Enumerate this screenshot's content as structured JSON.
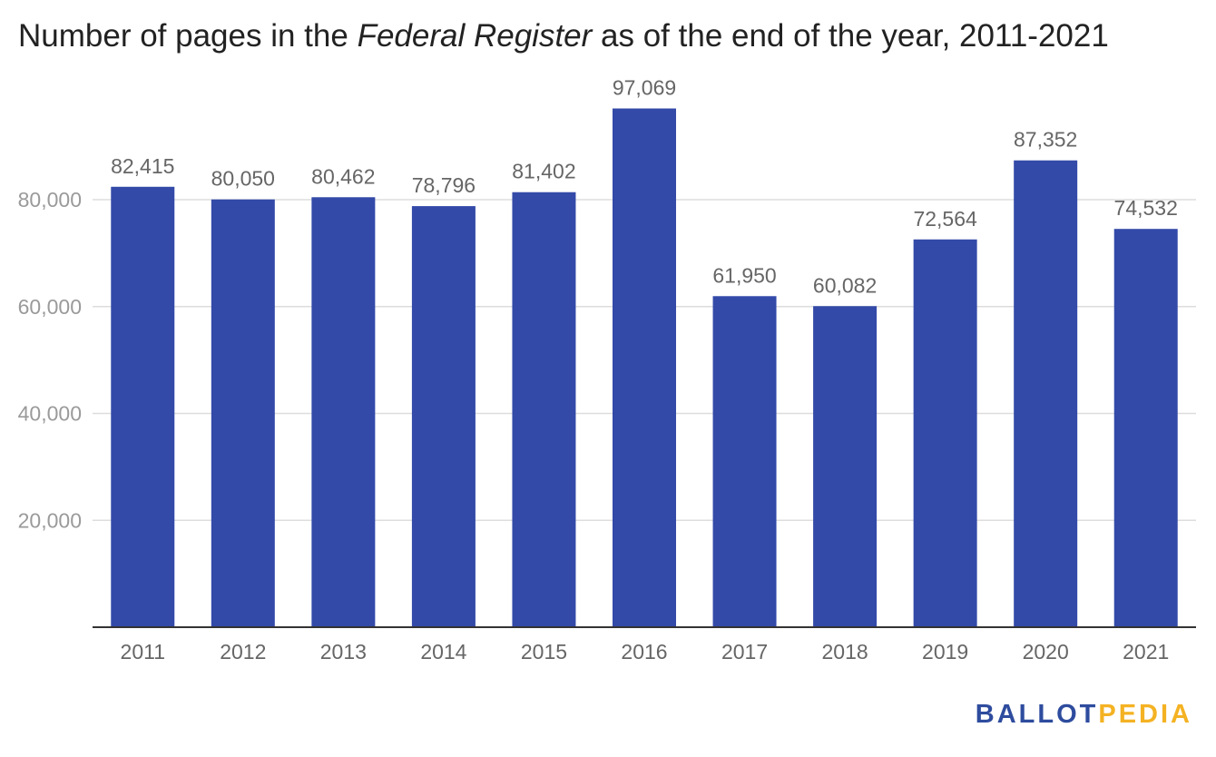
{
  "title": {
    "prefix": "Number of pages in the ",
    "italic": "Federal Register",
    "suffix": " as of the end of the year, 2011-2021"
  },
  "logo": {
    "part1": "BALLOT",
    "part2": "PEDIA"
  },
  "colors": {
    "bar": "#334aa8",
    "grid": "#dddddd",
    "axis": "#333333",
    "tick": "#9a9a9a",
    "label": "#666666"
  },
  "chart_data": {
    "type": "bar",
    "categories": [
      "2011",
      "2012",
      "2013",
      "2014",
      "2015",
      "2016",
      "2017",
      "2018",
      "2019",
      "2020",
      "2021"
    ],
    "values": [
      82415,
      80050,
      80462,
      78796,
      81402,
      97069,
      61950,
      60082,
      72564,
      87352,
      74532
    ],
    "value_labels": [
      "82,415",
      "80,050",
      "80,462",
      "78,796",
      "81,402",
      "97,069",
      "61,950",
      "60,082",
      "72,564",
      "87,352",
      "74,532"
    ],
    "yticks": [
      20000,
      40000,
      60000,
      80000
    ],
    "ytick_labels": [
      "20,000",
      "40,000",
      "60,000",
      "80,000"
    ],
    "ylim": [
      0,
      100000
    ],
    "grid": true,
    "legend": false
  }
}
